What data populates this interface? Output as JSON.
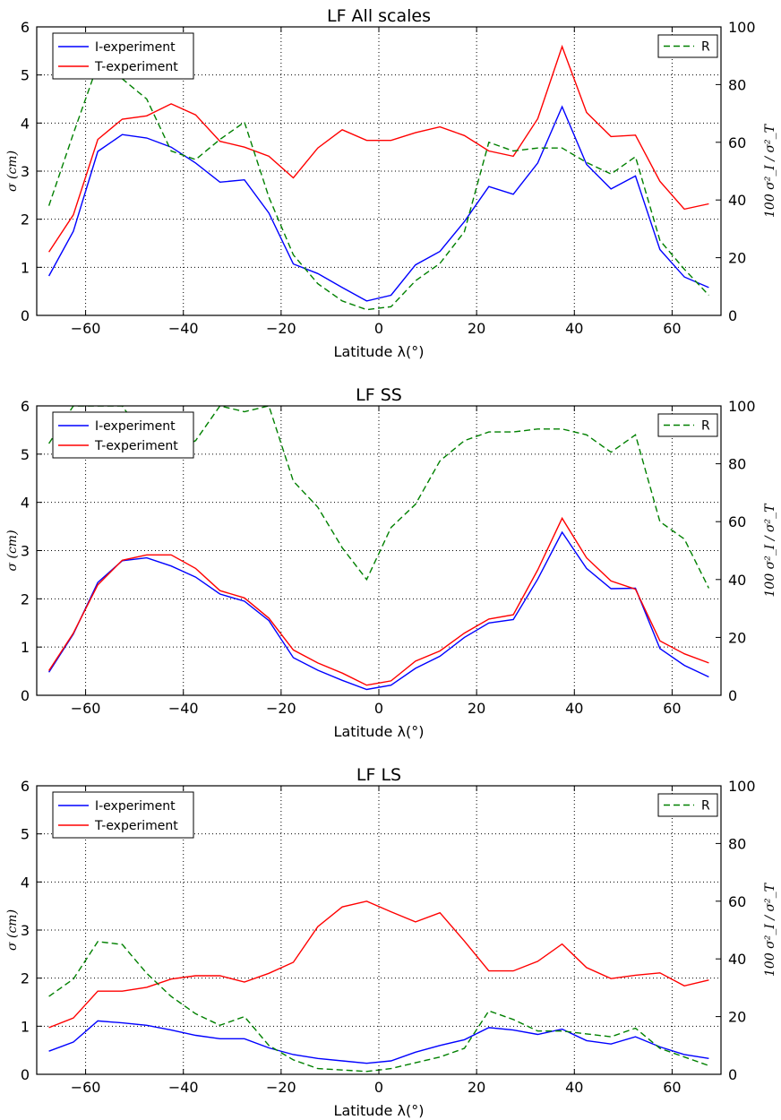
{
  "chart_data": [
    {
      "type": "line",
      "title": "LF All scales",
      "xlabel": "Latitude λ(°)",
      "ylabel_left": "σ (cm)",
      "ylabel_right": "100 σ²_I / σ²_T",
      "xlim": [
        -70,
        70
      ],
      "ylim_left": [
        0,
        6
      ],
      "ylim_right": [
        0,
        100
      ],
      "xticks": [
        "−60",
        "−40",
        "−20",
        "0",
        "20",
        "40",
        "60"
      ],
      "yticks_left": [
        "0",
        "1",
        "2",
        "3",
        "4",
        "5",
        "6"
      ],
      "yticks_right": [
        "0",
        "20",
        "40",
        "60",
        "80",
        "100"
      ],
      "grid": true,
      "legend_left_placement": "top-left",
      "legend_right_placement": "top-right",
      "x": [
        -67.5,
        -62.5,
        -57.5,
        -52.5,
        -47.5,
        -42.5,
        -37.5,
        -32.5,
        -27.5,
        -22.5,
        -17.5,
        -12.5,
        -7.5,
        -2.5,
        2.5,
        7.5,
        12.5,
        17.5,
        22.5,
        27.5,
        32.5,
        37.5,
        42.5,
        47.5,
        52.5,
        57.5,
        62.5,
        67.5
      ],
      "series": [
        {
          "name": "I-experiment",
          "axis": "left",
          "color": "#0000ff",
          "style": "solid",
          "values": [
            0.82,
            1.75,
            3.41,
            3.76,
            3.69,
            3.5,
            3.17,
            2.77,
            2.82,
            2.13,
            1.07,
            0.87,
            0.58,
            0.3,
            0.42,
            1.05,
            1.33,
            1.95,
            2.68,
            2.52,
            3.17,
            4.34,
            3.14,
            2.63,
            2.9,
            1.37,
            0.8,
            0.58
          ]
        },
        {
          "name": "T-experiment",
          "axis": "left",
          "color": "#ff0000",
          "style": "solid",
          "values": [
            1.32,
            2.09,
            3.66,
            4.08,
            4.15,
            4.4,
            4.17,
            3.62,
            3.5,
            3.31,
            2.86,
            3.48,
            3.86,
            3.64,
            3.64,
            3.8,
            3.92,
            3.74,
            3.42,
            3.31,
            4.09,
            5.59,
            4.22,
            3.72,
            3.75,
            2.79,
            2.21,
            2.32
          ]
        },
        {
          "name": "R",
          "axis": "right",
          "color": "#008000",
          "style": "dashed",
          "values": [
            38,
            63,
            87,
            82,
            75,
            57,
            54,
            61,
            67,
            41,
            21,
            11,
            5,
            2,
            3,
            12,
            18,
            29,
            60,
            57,
            58,
            58,
            53,
            49,
            55,
            26,
            16,
            7
          ]
        }
      ]
    },
    {
      "type": "line",
      "title": "LF SS",
      "xlabel": "Latitude λ(°)",
      "ylabel_left": "σ (cm)",
      "ylabel_right": "100 σ²_I / σ²_T",
      "xlim": [
        -70,
        70
      ],
      "ylim_left": [
        0,
        6
      ],
      "ylim_right": [
        0,
        100
      ],
      "xticks": [
        "−60",
        "−40",
        "−20",
        "0",
        "20",
        "40",
        "60"
      ],
      "yticks_left": [
        "0",
        "1",
        "2",
        "3",
        "4",
        "5",
        "6"
      ],
      "yticks_right": [
        "0",
        "20",
        "40",
        "60",
        "80",
        "100"
      ],
      "grid": true,
      "legend_left_placement": "top-left",
      "legend_right_placement": "top-right",
      "x": [
        -67.5,
        -62.5,
        -57.5,
        -52.5,
        -47.5,
        -42.5,
        -37.5,
        -32.5,
        -27.5,
        -22.5,
        -17.5,
        -12.5,
        -7.5,
        -2.5,
        2.5,
        7.5,
        12.5,
        17.5,
        22.5,
        27.5,
        32.5,
        37.5,
        42.5,
        47.5,
        52.5,
        57.5,
        62.5,
        67.5
      ],
      "series": [
        {
          "name": "I-experiment",
          "axis": "left",
          "color": "#0000ff",
          "style": "solid",
          "values": [
            0.48,
            1.27,
            2.34,
            2.79,
            2.85,
            2.68,
            2.45,
            2.1,
            1.95,
            1.55,
            0.78,
            0.52,
            0.31,
            0.12,
            0.21,
            0.56,
            0.81,
            1.2,
            1.5,
            1.57,
            2.41,
            3.38,
            2.63,
            2.21,
            2.22,
            0.97,
            0.62,
            0.38
          ]
        },
        {
          "name": "T-experiment",
          "axis": "left",
          "color": "#ff0000",
          "style": "solid",
          "values": [
            0.51,
            1.29,
            2.29,
            2.8,
            2.91,
            2.91,
            2.63,
            2.17,
            2.02,
            1.6,
            0.94,
            0.67,
            0.46,
            0.21,
            0.3,
            0.71,
            0.92,
            1.29,
            1.58,
            1.67,
            2.6,
            3.67,
            2.85,
            2.37,
            2.2,
            1.13,
            0.86,
            0.67
          ]
        },
        {
          "name": "R",
          "axis": "right",
          "color": "#008000",
          "style": "dashed",
          "values": [
            87,
            100,
            100,
            100,
            88,
            84,
            88,
            100,
            98,
            100,
            74,
            65,
            51,
            40,
            58,
            66,
            81,
            88,
            91,
            91,
            92,
            92,
            90,
            84,
            90,
            60,
            54,
            37
          ]
        }
      ]
    },
    {
      "type": "line",
      "title": "LF LS",
      "xlabel": "Latitude λ(°)",
      "ylabel_left": "σ (cm)",
      "ylabel_right": "100 σ²_I / σ²_T",
      "xlim": [
        -70,
        70
      ],
      "ylim_left": [
        0,
        6
      ],
      "ylim_right": [
        0,
        100
      ],
      "xticks": [
        "−60",
        "−40",
        "−20",
        "0",
        "20",
        "40",
        "60"
      ],
      "yticks_left": [
        "0",
        "1",
        "2",
        "3",
        "4",
        "5",
        "6"
      ],
      "yticks_right": [
        "0",
        "20",
        "40",
        "60",
        "80",
        "100"
      ],
      "grid": true,
      "legend_left_placement": "top-left",
      "legend_right_placement": "top-right",
      "x": [
        -67.5,
        -62.5,
        -57.5,
        -52.5,
        -47.5,
        -42.5,
        -37.5,
        -32.5,
        -27.5,
        -22.5,
        -17.5,
        -12.5,
        -7.5,
        -2.5,
        2.5,
        7.5,
        12.5,
        17.5,
        22.5,
        27.5,
        32.5,
        37.5,
        42.5,
        47.5,
        52.5,
        57.5,
        62.5,
        67.5
      ],
      "series": [
        {
          "name": "I-experiment",
          "axis": "left",
          "color": "#0000ff",
          "style": "solid",
          "values": [
            0.48,
            0.67,
            1.11,
            1.07,
            1.02,
            0.92,
            0.81,
            0.74,
            0.74,
            0.55,
            0.41,
            0.33,
            0.28,
            0.23,
            0.28,
            0.46,
            0.6,
            0.72,
            0.97,
            0.92,
            0.83,
            0.94,
            0.7,
            0.63,
            0.78,
            0.57,
            0.41,
            0.33
          ]
        },
        {
          "name": "T-experiment",
          "axis": "left",
          "color": "#ff0000",
          "style": "solid",
          "values": [
            0.97,
            1.17,
            1.73,
            1.73,
            1.81,
            1.98,
            2.05,
            2.05,
            1.92,
            2.1,
            2.33,
            3.07,
            3.48,
            3.6,
            3.38,
            3.17,
            3.36,
            2.77,
            2.15,
            2.15,
            2.35,
            2.71,
            2.22,
            1.99,
            2.06,
            2.11,
            1.84,
            1.96
          ]
        },
        {
          "name": "R",
          "axis": "right",
          "color": "#008000",
          "style": "dashed",
          "values": [
            27,
            33,
            46,
            45,
            35,
            27,
            21,
            17,
            20,
            10,
            5,
            2,
            1.5,
            1,
            2,
            4,
            6,
            9,
            22,
            19,
            15,
            15,
            14,
            13,
            16,
            9,
            6,
            3
          ]
        }
      ]
    }
  ]
}
